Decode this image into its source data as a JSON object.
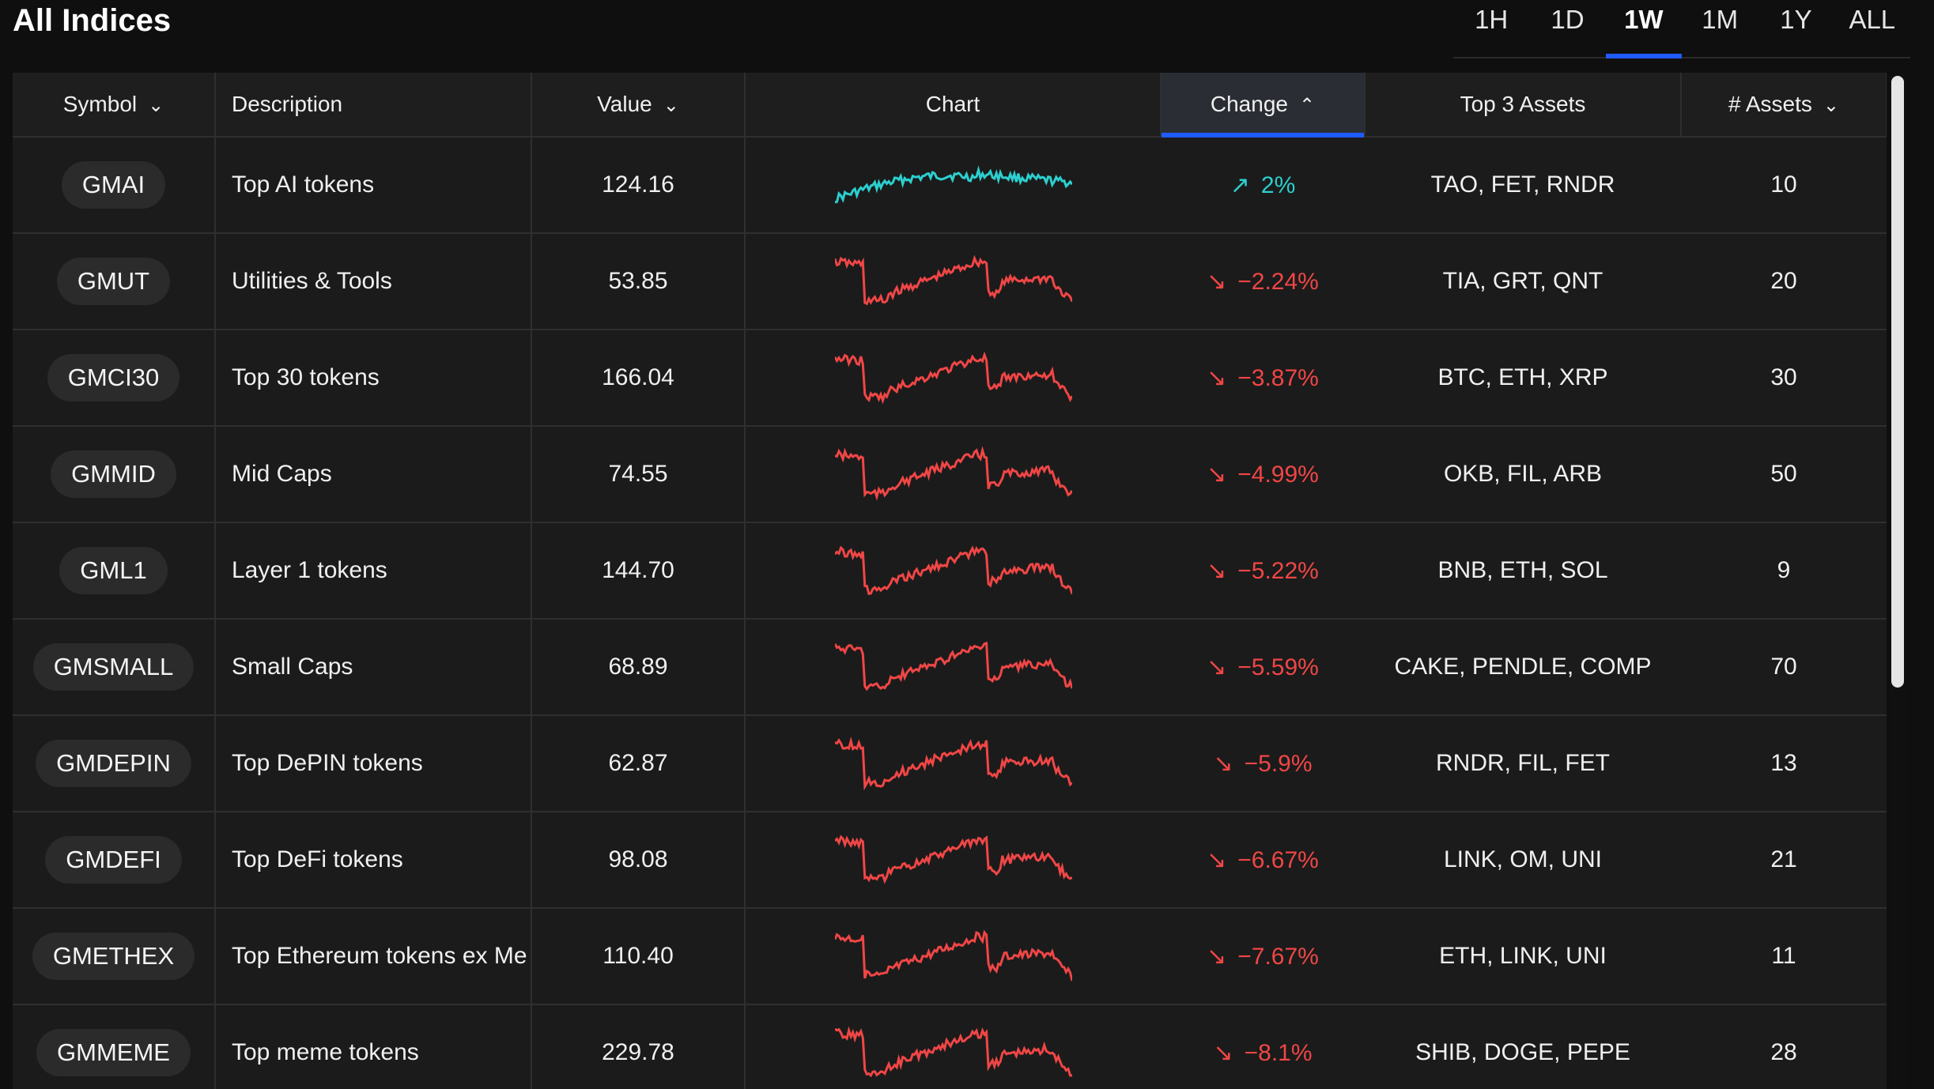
{
  "page": {
    "title": "All Indices"
  },
  "range_tabs": [
    {
      "label": "1H",
      "active": false
    },
    {
      "label": "1D",
      "active": false
    },
    {
      "label": "1W",
      "active": true
    },
    {
      "label": "1M",
      "active": false
    },
    {
      "label": "1Y",
      "active": false
    },
    {
      "label": "ALL",
      "active": false
    }
  ],
  "columns": {
    "symbol": "Symbol",
    "description": "Description",
    "value": "Value",
    "chart": "Chart",
    "change": "Change",
    "top3": "Top 3 Assets",
    "assets": "# Assets"
  },
  "colors": {
    "up": "#2ccfcf",
    "down": "#f04646",
    "accent": "#1f5bff"
  },
  "rows": [
    {
      "symbol": "GMAI",
      "description": "Top AI tokens",
      "value": "124.16",
      "change": "2%",
      "direction": "up",
      "top3": "TAO, FET, RNDR",
      "assets": "10"
    },
    {
      "symbol": "GMUT",
      "description": "Utilities & Tools",
      "value": "53.85",
      "change": "−2.24%",
      "direction": "down",
      "top3": "TIA, GRT, QNT",
      "assets": "20"
    },
    {
      "symbol": "GMCI30",
      "description": "Top 30 tokens",
      "value": "166.04",
      "change": "−3.87%",
      "direction": "down",
      "top3": "BTC, ETH, XRP",
      "assets": "30"
    },
    {
      "symbol": "GMMID",
      "description": "Mid Caps",
      "value": "74.55",
      "change": "−4.99%",
      "direction": "down",
      "top3": "OKB, FIL, ARB",
      "assets": "50"
    },
    {
      "symbol": "GML1",
      "description": "Layer 1 tokens",
      "value": "144.70",
      "change": "−5.22%",
      "direction": "down",
      "top3": "BNB, ETH, SOL",
      "assets": "9"
    },
    {
      "symbol": "GMSMALL",
      "description": "Small Caps",
      "value": "68.89",
      "change": "−5.59%",
      "direction": "down",
      "top3": "CAKE, PENDLE, COMP",
      "assets": "70"
    },
    {
      "symbol": "GMDEPIN",
      "description": "Top DePIN tokens",
      "value": "62.87",
      "change": "−5.9%",
      "direction": "down",
      "top3": "RNDR, FIL, FET",
      "assets": "13"
    },
    {
      "symbol": "GMDEFI",
      "description": "Top DeFi tokens",
      "value": "98.08",
      "change": "−6.67%",
      "direction": "down",
      "top3": "LINK, OM, UNI",
      "assets": "21"
    },
    {
      "symbol": "GMETHEX",
      "description": "Top Ethereum tokens ex Me",
      "value": "110.40",
      "change": "−7.67%",
      "direction": "down",
      "top3": "ETH, LINK, UNI",
      "assets": "11"
    },
    {
      "symbol": "GMMEME",
      "description": "Top meme tokens",
      "value": "229.78",
      "change": "−8.1%",
      "direction": "down",
      "top3": "SHIB, DOGE, PEPE",
      "assets": "28"
    }
  ]
}
